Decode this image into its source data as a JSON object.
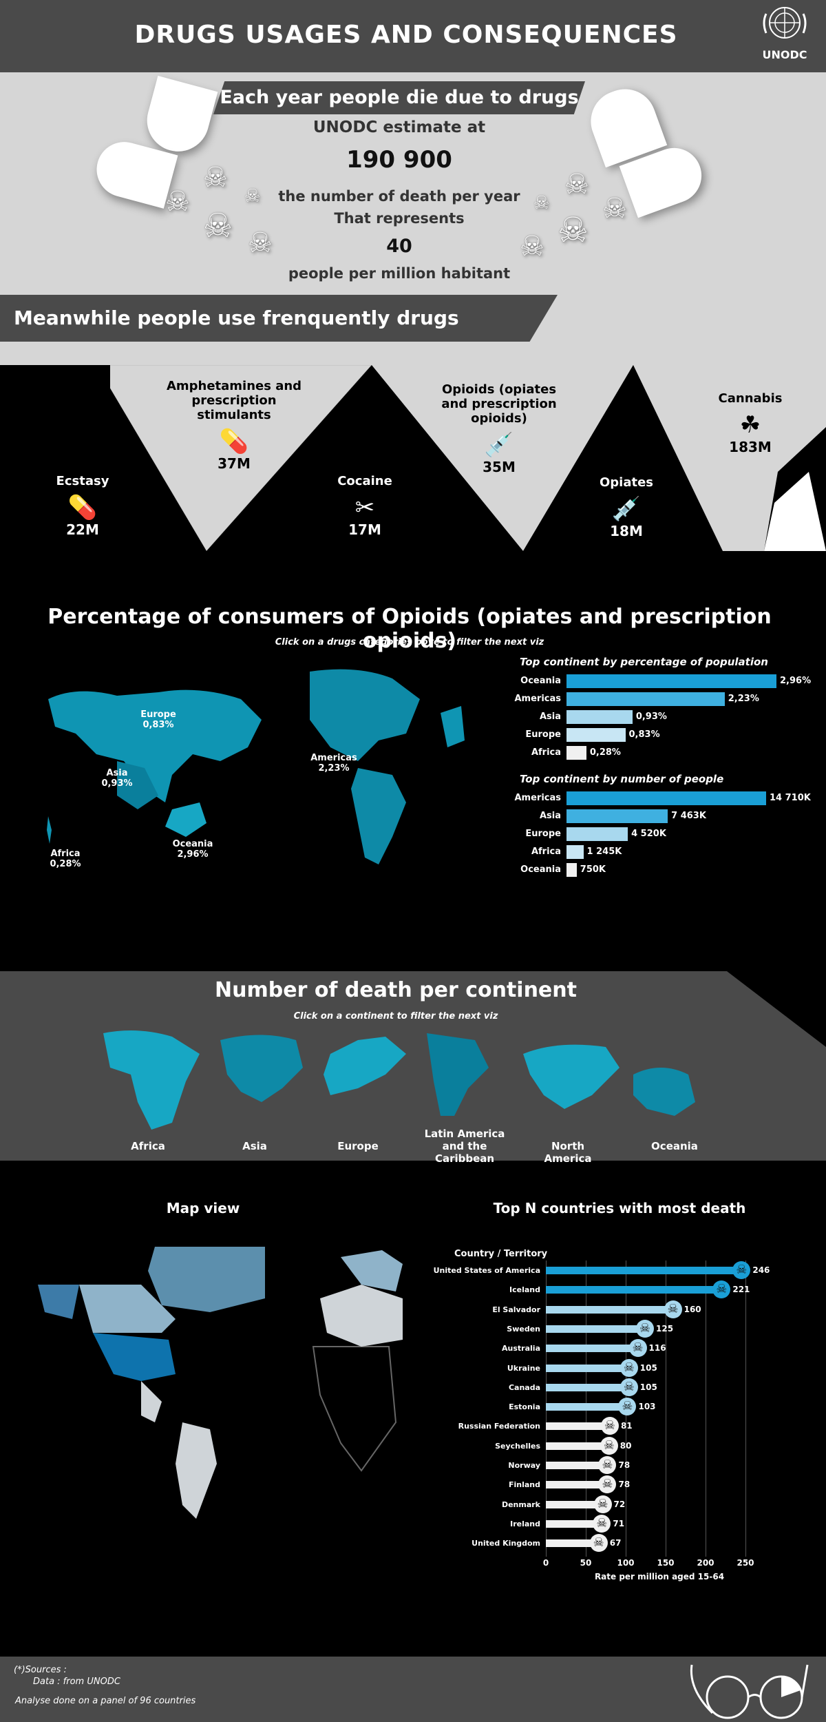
{
  "header": {
    "title": "DRUGS USAGES AND CONSEQUENCES",
    "logo_text": "UNODC"
  },
  "intro": {
    "banner": "Each year people die due to drugs",
    "estimate_label": "UNODC estimate at",
    "deaths": "190 900",
    "deaths_label": "the number of death per year",
    "represents": "That represents",
    "per_million": "40",
    "per_million_label": "people per million habitant"
  },
  "usage": {
    "banner": "Meanwhile people use frenquently drugs",
    "drugs": [
      {
        "name": "Ecstasy",
        "value": "22M",
        "icon": "pills-icon"
      },
      {
        "name": "Amphetamines and prescription stimulants",
        "value": "37M",
        "icon": "pills-icon"
      },
      {
        "name": "Cocaine",
        "value": "17M",
        "icon": "razor-icon"
      },
      {
        "name": "Opioids (opiates and prescription opioids)",
        "value": "35M",
        "icon": "pill-bottle-syringe-icon"
      },
      {
        "name": "Opiates",
        "value": "18M",
        "icon": "syringe-icon"
      },
      {
        "name": "Cannabis",
        "value": "183M",
        "icon": "cannabis-leaf-icon"
      }
    ]
  },
  "opioids": {
    "title": "Percentage of consumers of Opioids (opiates and prescription opioids)",
    "subtitle": "Click on a drugs categories bove to filter the next viz",
    "map_labels": [
      {
        "name": "Europe",
        "value": "0,83%"
      },
      {
        "name": "Asia",
        "value": "0,93%"
      },
      {
        "name": "Americas",
        "value": "2,23%"
      },
      {
        "name": "Oceania",
        "value": "2,96%"
      },
      {
        "name": "Africa",
        "value": "0,28%"
      }
    ],
    "pct_title": "Top continent by percentage of population",
    "num_title": "Top continent by number of people"
  },
  "deaths_continent": {
    "title": "Number of death per continent",
    "subtitle": "Click on a continent to filter the next viz",
    "continents": [
      "Africa",
      "Asia",
      "Europe",
      "Latin America and the Caribbean",
      "North America",
      "Oceania"
    ]
  },
  "map_view": {
    "title": "Map view"
  },
  "top_countries": {
    "title": "Top N countries with most death",
    "col_header": "Country / Territory"
  },
  "chart_data": [
    {
      "type": "bar",
      "title": "Top continent by percentage of population",
      "categories": [
        "Oceania",
        "Americas",
        "Asia",
        "Europe",
        "Africa"
      ],
      "values": [
        2.96,
        2.23,
        0.93,
        0.83,
        0.28
      ],
      "labels": [
        "2,96%",
        "2,23%",
        "0,93%",
        "0,83%",
        "0,28%"
      ],
      "colors": [
        "#1a9fd6",
        "#3fb0e0",
        "#a8d8ee",
        "#c8e6f4",
        "#f0f0f0"
      ]
    },
    {
      "type": "bar",
      "title": "Top continent by number of people",
      "categories": [
        "Americas",
        "Asia",
        "Europe",
        "Africa",
        "Oceania"
      ],
      "values": [
        14710,
        7463,
        4520,
        1245,
        750
      ],
      "labels": [
        "14 710K",
        "7 463K",
        "4 520K",
        "1 245K",
        "750K"
      ],
      "colors": [
        "#1a9fd6",
        "#3fb0e0",
        "#a8d8ee",
        "#c8e6f4",
        "#f0f0f0"
      ]
    },
    {
      "type": "bar",
      "title": "Top N countries with most death",
      "xlabel": "Rate per million aged 15-64",
      "xlim": [
        0,
        260
      ],
      "xticks": [
        0,
        50,
        100,
        150,
        200,
        250
      ],
      "categories": [
        "United States of America",
        "Iceland",
        "El Salvador",
        "Sweden",
        "Australia",
        "Ukraine",
        "Canada",
        "Estonia",
        "Russian Federation",
        "Seychelles",
        "Norway",
        "Finland",
        "Denmark",
        "Ireland",
        "United Kingdom"
      ],
      "values": [
        246,
        221,
        160,
        125,
        116,
        105,
        105,
        103,
        81,
        80,
        78,
        78,
        72,
        71,
        67
      ]
    }
  ],
  "footer": {
    "sources": "(*)Sources :",
    "data": "Data : from UNODC",
    "analyse": "Analyse done on a panel of  96 countries"
  }
}
